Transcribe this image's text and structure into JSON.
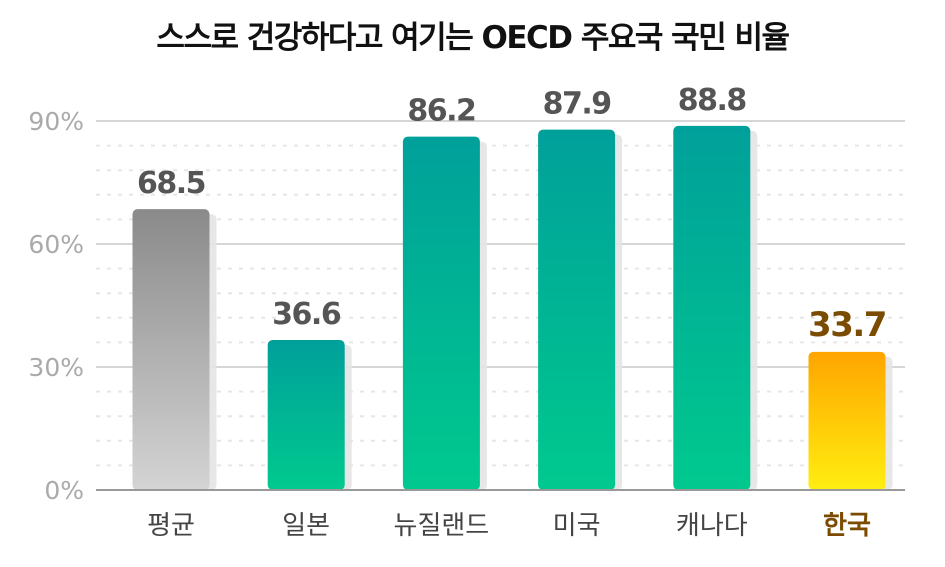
{
  "chart_data": {
    "type": "bar",
    "title": "스스로 건강하다고 여기는 OECD 주요국 국민 비율",
    "categories": [
      "평균",
      "일본",
      "뉴질랜드",
      "미국",
      "캐나다",
      "한국"
    ],
    "values": [
      68.5,
      36.6,
      86.2,
      87.9,
      88.8,
      33.7
    ],
    "highlight": "한국",
    "ylim": [
      0,
      90
    ],
    "yticks": [
      "0%",
      "30%",
      "60%",
      "90%"
    ],
    "ytick_values": [
      0,
      30,
      60,
      90
    ],
    "grid": true,
    "colors": {
      "average": [
        "#8a8a8a",
        "#d4d4d4"
      ],
      "default": [
        "#00a09a",
        "#00c98e"
      ],
      "highlight": [
        "#ffa500",
        "#ffee10"
      ],
      "highlight_text": "#7a4b00"
    }
  }
}
